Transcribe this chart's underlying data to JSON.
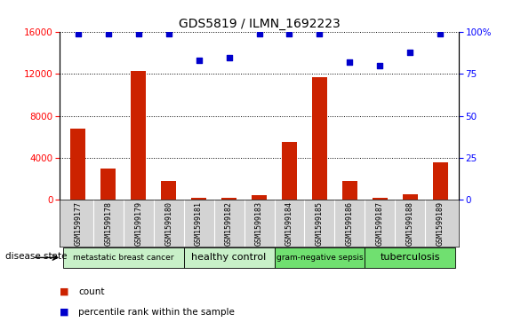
{
  "title": "GDS5819 / ILMN_1692223",
  "samples": [
    "GSM1599177",
    "GSM1599178",
    "GSM1599179",
    "GSM1599180",
    "GSM1599181",
    "GSM1599182",
    "GSM1599183",
    "GSM1599184",
    "GSM1599185",
    "GSM1599186",
    "GSM1599187",
    "GSM1599188",
    "GSM1599189"
  ],
  "counts": [
    6800,
    3000,
    12300,
    1800,
    200,
    200,
    450,
    5500,
    11700,
    1800,
    150,
    550,
    3600
  ],
  "percentile_ranks": [
    99,
    99,
    99,
    99,
    83,
    85,
    99,
    99,
    99,
    82,
    80,
    88,
    99
  ],
  "groups": [
    {
      "label": "metastatic breast cancer",
      "start": 0,
      "end": 3,
      "color": "#c8f0c8"
    },
    {
      "label": "healthy control",
      "start": 4,
      "end": 6,
      "color": "#c8f0c8"
    },
    {
      "label": "gram-negative sepsis",
      "start": 7,
      "end": 9,
      "color": "#70e070"
    },
    {
      "label": "tuberculosis",
      "start": 10,
      "end": 12,
      "color": "#70e070"
    }
  ],
  "disease_state_label": "disease state",
  "ylim_left": [
    0,
    16000
  ],
  "ylim_right": [
    0,
    100
  ],
  "yticks_left": [
    0,
    4000,
    8000,
    12000,
    16000
  ],
  "yticks_right": [
    0,
    25,
    50,
    75,
    100
  ],
  "bar_color": "#cc2200",
  "dot_color": "#0000cc",
  "bar_width": 0.5,
  "sample_bg_color": "#d3d3d3",
  "title_fontsize": 10,
  "tick_fontsize": 7.5,
  "sample_fontsize": 6,
  "group_fontsize": 8
}
